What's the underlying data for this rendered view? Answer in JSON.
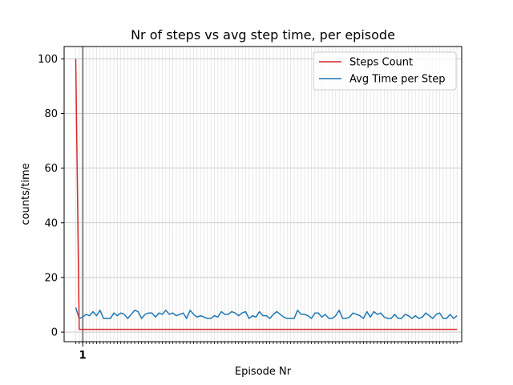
{
  "chart_data": {
    "type": "line",
    "title": "Nr of steps vs avg step time, per episode",
    "xlabel": "Episode Nr",
    "ylabel": "counts/time",
    "xlim": [
      -2.35,
      112.35
    ],
    "ylim": [
      -3.5,
      104.5
    ],
    "grid": true,
    "legend_position": "top-right",
    "x_tick_labels": [
      "1"
    ],
    "y_ticks": [
      0,
      20,
      40,
      60,
      80,
      100
    ],
    "y_tick_labels": [
      "0",
      "20",
      "40",
      "60",
      "80",
      "100"
    ],
    "series": [
      {
        "name": "Steps Count",
        "color": "#d62728",
        "values": [
          100,
          1,
          1,
          1,
          1,
          1,
          1,
          1,
          1,
          1,
          1,
          1,
          1,
          1,
          1,
          1,
          1,
          1,
          1,
          1,
          1,
          1,
          1,
          1,
          1,
          1,
          1,
          1,
          1,
          1,
          1,
          1,
          1,
          1,
          1,
          1,
          1,
          1,
          1,
          1,
          1,
          1,
          1,
          1,
          1,
          1,
          1,
          1,
          1,
          1,
          1,
          1,
          1,
          1,
          1,
          1,
          1,
          1,
          1,
          1,
          1,
          1,
          1,
          1,
          1,
          1,
          1,
          1,
          1,
          1,
          1,
          1,
          1,
          1,
          1,
          1,
          1,
          1,
          1,
          1,
          1,
          1,
          1,
          1,
          1,
          1,
          1,
          1,
          1,
          1,
          1,
          1,
          1,
          1,
          1,
          1,
          1,
          1,
          1,
          1,
          1,
          1,
          1,
          1,
          1,
          1,
          1,
          1,
          1,
          1,
          1
        ]
      },
      {
        "name": "Avg Time per Step",
        "color": "#1f77b4",
        "values": [
          9,
          5,
          5.5,
          6.5,
          6,
          7.5,
          6,
          8,
          5,
          5,
          5,
          7,
          6,
          7,
          6.5,
          5,
          6.5,
          8,
          7.5,
          5,
          6.5,
          7,
          7,
          5.5,
          7,
          6.5,
          8,
          6.5,
          7,
          6,
          6.5,
          7,
          5,
          8,
          6.5,
          5.5,
          6,
          5.5,
          5,
          5,
          6,
          5.5,
          7.5,
          6.5,
          6.5,
          7.5,
          7,
          6,
          7,
          7.5,
          5,
          6,
          5.5,
          7.5,
          6,
          6,
          5,
          6.5,
          7.5,
          6.5,
          5.5,
          5,
          5,
          5,
          8,
          6.5,
          6.5,
          6,
          5,
          7,
          7,
          5.5,
          6.5,
          5,
          5,
          6,
          8,
          5,
          5,
          5.5,
          7,
          6.5,
          6,
          5,
          7.5,
          5.5,
          7.5,
          6.5,
          7,
          5.5,
          5,
          5,
          6.5,
          5,
          5,
          6.5,
          6,
          5,
          6,
          5,
          5.5,
          7,
          6,
          5,
          6.5,
          7,
          5,
          5,
          6.5,
          5,
          6
        ]
      }
    ]
  }
}
